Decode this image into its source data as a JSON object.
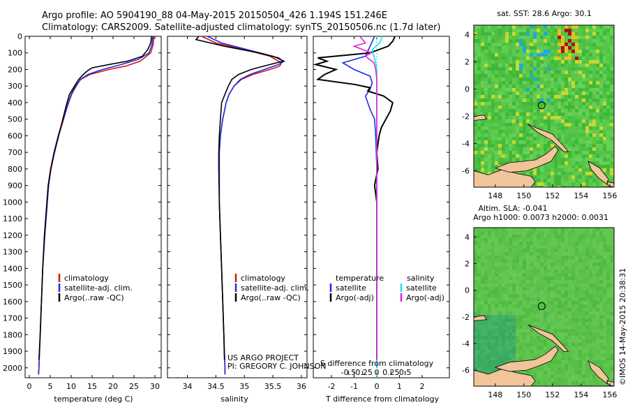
{
  "header": {
    "line1": "Argo profile: AO 5904190_88 04-May-2015 20150504_426 1.194S 151.246E",
    "line2": "Climatology: CARS2009. Satellite-adjusted climatology: synTS_20150506.nc (1.7d later)"
  },
  "colors": {
    "climatology": "#e01010",
    "satellite": "#1a2ee8",
    "argo": "#000000",
    "sal_satellite": "#19e3e8",
    "sal_argo": "#e020e0",
    "land": "#f2c49a"
  },
  "depth_ticks": [
    0,
    100,
    200,
    300,
    400,
    500,
    600,
    700,
    800,
    900,
    1000,
    1100,
    1200,
    1300,
    1400,
    1500,
    1600,
    1700,
    1800,
    1900,
    2000
  ],
  "chart_data": [
    {
      "type": "line",
      "name": "temperature",
      "xlabel": "temperature (deg C)",
      "ylabel": "",
      "xlim": [
        -1,
        31.5
      ],
      "ylim": [
        2060,
        0
      ],
      "xticks": [
        "0",
        "5",
        "10",
        "15",
        "20",
        "25",
        "30"
      ],
      "xtick_values": [
        0,
        5,
        10,
        15,
        20,
        25,
        30
      ],
      "legend": [
        "climatology",
        "satellite-adj. clim.",
        "Argo(..raw -QC)"
      ],
      "series": [
        {
          "name": "climatology",
          "depth": [
            0,
            50,
            100,
            150,
            180,
            200,
            230,
            260,
            300,
            350,
            400,
            500,
            600,
            700,
            800,
            900,
            1000,
            1200,
            1400,
            1600,
            1800,
            2000,
            2040
          ],
          "values": [
            29.7,
            29.6,
            29.0,
            26.5,
            23.0,
            19.0,
            14.5,
            12.3,
            11.0,
            10.0,
            9.3,
            8.2,
            7.0,
            6.0,
            5.2,
            4.6,
            4.3,
            3.7,
            3.2,
            2.9,
            2.6,
            2.3,
            2.2
          ]
        },
        {
          "name": "satellite-adj. clim.",
          "depth": [
            0,
            50,
            100,
            140,
            170,
            200,
            230,
            260,
            300,
            350,
            400,
            500,
            600,
            700,
            800,
            900,
            1000,
            1200,
            1400,
            1600,
            1800,
            2000,
            2040
          ],
          "values": [
            29.5,
            29.3,
            28.6,
            26.0,
            22.0,
            17.5,
            14.0,
            12.2,
            11.2,
            10.1,
            9.4,
            8.1,
            6.9,
            5.9,
            5.1,
            4.6,
            4.3,
            3.7,
            3.2,
            2.9,
            2.6,
            2.3,
            2.2
          ]
        },
        {
          "name": "Argo(..raw -QC)",
          "depth": [
            0,
            40,
            80,
            120,
            150,
            170,
            190,
            210,
            230,
            260,
            300,
            350,
            400,
            500,
            600,
            700,
            800,
            900,
            1000,
            1200,
            1400,
            1600,
            1800,
            1950
          ],
          "values": [
            29.2,
            29.0,
            28.3,
            27.0,
            23.5,
            19.0,
            15.0,
            13.8,
            12.9,
            11.8,
            10.8,
            9.6,
            9.0,
            8.0,
            7.0,
            6.0,
            5.1,
            4.5,
            4.2,
            3.6,
            3.2,
            2.9,
            2.6,
            2.3
          ]
        }
      ]
    },
    {
      "type": "line",
      "name": "salinity",
      "xlabel": "salinity",
      "ylabel": "",
      "xlim": [
        33.65,
        36.1
      ],
      "ylim": [
        2060,
        0
      ],
      "xticks": [
        "34",
        "34.5",
        "35",
        "35.5",
        "36"
      ],
      "xtick_values": [
        34,
        34.5,
        35,
        35.5,
        36
      ],
      "legend": [
        "climatology",
        "satellite-adj. clim.",
        "Argo(..raw -QC)"
      ],
      "series": [
        {
          "name": "climatology",
          "depth": [
            0,
            40,
            80,
            120,
            160,
            180,
            200,
            230,
            260,
            300,
            350,
            400,
            500,
            600,
            700,
            800,
            1000,
            1200,
            1400,
            1600,
            1800,
            2000,
            2040
          ],
          "values": [
            34.25,
            34.5,
            35.0,
            35.45,
            35.65,
            35.62,
            35.45,
            35.15,
            34.95,
            34.82,
            34.73,
            34.68,
            34.62,
            34.58,
            34.56,
            34.56,
            34.56,
            34.58,
            34.6,
            34.62,
            34.64,
            34.66,
            34.66
          ]
        },
        {
          "name": "satellite-adj. clim.",
          "depth": [
            0,
            40,
            80,
            120,
            150,
            170,
            200,
            230,
            260,
            300,
            350,
            400,
            500,
            600,
            700,
            800,
            1000,
            1200,
            1400,
            1600,
            1800,
            2000,
            2040
          ],
          "values": [
            34.35,
            34.6,
            35.05,
            35.5,
            35.7,
            35.6,
            35.35,
            35.1,
            34.93,
            34.82,
            34.73,
            34.68,
            34.62,
            34.58,
            34.56,
            34.56,
            34.56,
            34.58,
            34.6,
            34.62,
            34.64,
            34.66,
            34.66
          ]
        },
        {
          "name": "Argo(..raw -QC)",
          "depth": [
            0,
            20,
            60,
            100,
            130,
            150,
            170,
            200,
            230,
            260,
            300,
            350,
            400,
            500,
            600,
            700,
            800,
            1000,
            1200,
            1400,
            1600,
            1800,
            1950
          ],
          "values": [
            34.2,
            34.15,
            34.65,
            35.25,
            35.6,
            35.68,
            35.45,
            35.12,
            34.9,
            34.78,
            34.72,
            34.66,
            34.6,
            34.58,
            34.56,
            34.55,
            34.55,
            34.56,
            34.58,
            34.6,
            34.62,
            34.64,
            34.65
          ]
        }
      ]
    },
    {
      "type": "line",
      "name": "difference from climatology",
      "xlabel": "T difference from climatology",
      "top_xlabel": "S difference from climatology",
      "xlim": [
        -2.8,
        3.2
      ],
      "ylim": [
        2060,
        0
      ],
      "xticks": [
        "-2",
        "-1",
        "0",
        "1",
        "2"
      ],
      "xtick_values": [
        -2,
        -1,
        0,
        1,
        2
      ],
      "top_xticks": [
        "-0.5",
        "-0.25",
        "0",
        "0.25",
        "0.5"
      ],
      "legend_title_temperature": "temperature",
      "legend_title_salinity": "salinity",
      "legend": [
        "satellite",
        "Argo(-adj)",
        "satellite",
        "Argo(-adj)"
      ],
      "series": [
        {
          "name": "T satellite",
          "depth": [
            0,
            60,
            120,
            160,
            200,
            240,
            280,
            320,
            360,
            400,
            440,
            500,
            600,
            800,
            1000,
            1400,
            1800,
            2000
          ],
          "values": [
            -0.1,
            -0.3,
            -0.5,
            -1.5,
            -1.0,
            -0.3,
            -0.2,
            -0.3,
            -0.5,
            -0.4,
            -0.3,
            -0.1,
            -0.05,
            0,
            0,
            0,
            0,
            0
          ]
        },
        {
          "name": "T Argo(-adj)",
          "depth": [
            0,
            30,
            60,
            100,
            130,
            150,
            170,
            200,
            230,
            260,
            290,
            310,
            330,
            360,
            400,
            450,
            500,
            550,
            600,
            700,
            800,
            900,
            1000,
            1200,
            1400,
            1600,
            1800,
            1950
          ],
          "values": [
            0.8,
            0.7,
            0.5,
            -0.3,
            -2.6,
            -2.2,
            -2.7,
            -1.8,
            -2.3,
            -2.6,
            -1.0,
            -0.3,
            -0.4,
            0.3,
            0.7,
            0.6,
            0.4,
            0.2,
            0.1,
            0.0,
            0.05,
            -0.1,
            0.0,
            0.0,
            0.0,
            0.0,
            0.0,
            0.0
          ]
        },
        {
          "name": "S satellite",
          "depth": [
            0,
            40,
            80,
            120,
            160,
            200,
            300,
            500,
            1000,
            1500,
            2000
          ],
          "values": [
            0.1,
            0.05,
            -0.08,
            -0.05,
            -0.02,
            0,
            0,
            0,
            0,
            0,
            0
          ]
        },
        {
          "name": "S Argo(-adj)",
          "depth": [
            0,
            40,
            60,
            100,
            120,
            160,
            200,
            260,
            400,
            600,
            1000,
            1400,
            1800,
            1950
          ],
          "values": [
            -0.3,
            -0.2,
            -0.4,
            -0.1,
            -0.2,
            -0.05,
            -0.02,
            0,
            0,
            0,
            0,
            0,
            0,
            0
          ]
        }
      ]
    },
    {
      "type": "heatmap",
      "name": "sat SST map",
      "title": "sat. SST: 28.6  Argo: 30.1",
      "xlim": [
        146.5,
        156.3
      ],
      "ylim": [
        -7.2,
        4.7
      ],
      "xticks": [
        "148",
        "150",
        "152",
        "154",
        "156"
      ],
      "xtick_values": [
        148,
        150,
        152,
        154,
        156
      ],
      "yticks": [
        "4",
        "2",
        "0",
        "-2",
        "-4",
        "-6"
      ],
      "ytick_values": [
        4,
        2,
        0,
        -2,
        -4,
        -6
      ],
      "argo_position": {
        "lon": 151.246,
        "lat": -1.194
      }
    },
    {
      "type": "heatmap",
      "name": "altimetry SLA map",
      "title": "Altim. SLA: -0.041",
      "subtitle": "Argo h1000: 0.0073 h2000: 0.0031",
      "xlim": [
        146.5,
        156.3
      ],
      "ylim": [
        -7.2,
        4.7
      ],
      "xticks": [
        "148",
        "150",
        "152",
        "154",
        "156"
      ],
      "xtick_values": [
        148,
        150,
        152,
        154,
        156
      ],
      "yticks": [
        "4",
        "2",
        "0",
        "-2",
        "-4",
        "-6"
      ],
      "ytick_values": [
        4,
        2,
        0,
        -2,
        -4,
        -6
      ],
      "argo_position": {
        "lon": 151.246,
        "lat": -1.194
      }
    }
  ],
  "credits": {
    "project": "US ARGO PROJECT",
    "pi": "PI: GREGORY C. JOHNSON",
    "stamp": "©IMOS 14-May-2015 20:38:31"
  }
}
